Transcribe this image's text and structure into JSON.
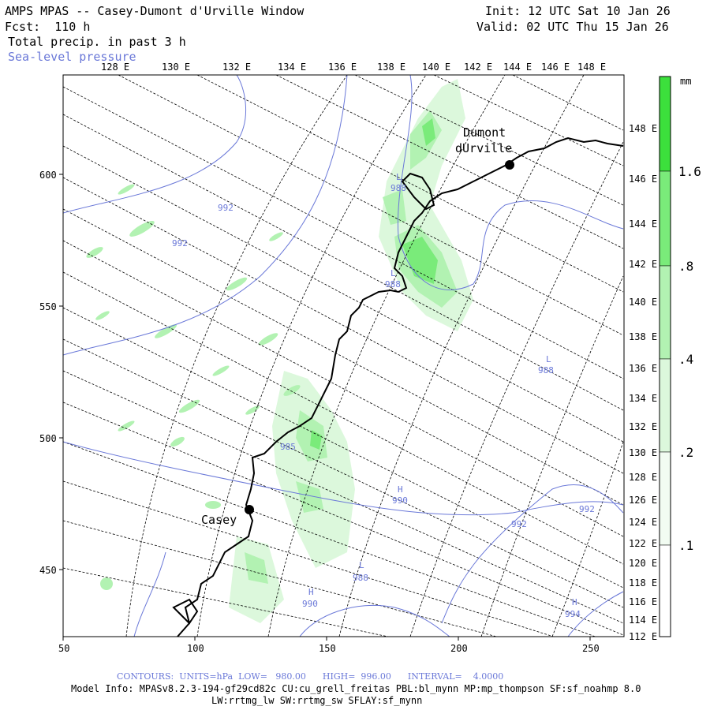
{
  "header": {
    "title": "AMPS MPAS -- Casey-Dumont d'Urville Window",
    "forecast": "Fcst:  110 h",
    "field": "Total precip. in past 3 h",
    "contour_field": "Sea-level pressure",
    "init": "Init: 12 UTC Sat 10 Jan 26",
    "valid": "Valid: 02 UTC Thu 15 Jan 26"
  },
  "top_lon_labels": [
    "128 E",
    "130 E",
    "132 E",
    "134 E",
    "136 E",
    "138 E",
    "140 E",
    "142 E",
    "144 E",
    "146 E",
    "148 E"
  ],
  "right_lon_labels": [
    "148 E",
    "146 E",
    "144 E",
    "142 E",
    "140 E",
    "138 E",
    "136 E",
    "134 E",
    "132 E",
    "130 E",
    "128 E",
    "126 E",
    "124 E",
    "122 E",
    "120 E",
    "118 E",
    "116 E",
    "114 E",
    "112 E"
  ],
  "x_axis_labels": [
    "50",
    "100",
    "150",
    "200",
    "250"
  ],
  "y_axis_labels": [
    "600",
    "550",
    "500",
    "450"
  ],
  "colorbar": {
    "unit": "mm",
    "labels": [
      "1.6",
      ".8",
      ".4",
      ".2",
      ".1"
    ],
    "colors": [
      "#3ce03c",
      "#7aeb7a",
      "#b2f2b2",
      "#dcf8dc",
      "#f2fcf2"
    ]
  },
  "stations": [
    {
      "name": "Casey"
    },
    {
      "name_line1": "Dumont",
      "name_line2": "dUrville"
    }
  ],
  "contour_labels": [
    {
      "text": "992"
    },
    {
      "text": "992"
    },
    {
      "text": "L"
    },
    {
      "text": "988"
    },
    {
      "text": "L"
    },
    {
      "text": "988"
    },
    {
      "text": "L"
    },
    {
      "text": "988"
    },
    {
      "text": "985"
    },
    {
      "text": "H"
    },
    {
      "text": "990"
    },
    {
      "text": "992"
    },
    {
      "text": "992"
    },
    {
      "text": "L"
    },
    {
      "text": "988"
    },
    {
      "text": "H"
    },
    {
      "text": "990"
    },
    {
      "text": "H"
    },
    {
      "text": "994"
    }
  ],
  "footer": {
    "contours": "CONTOURS:  UNITS=hPa  LOW=   980.00      HIGH=  996.00      INTERVAL=    4.0000",
    "model_info": "Model Info: MPASv8.2.3-194-gf29cd82c CU:cu_grell_freitas PBL:bl_mynn MP:mp_thompson SF:sf_noahmp 8.0",
    "model_info2": "LW:rrtmg_lw SW:rrtmg_sw SFLAY:sf_mynn"
  },
  "colors": {
    "contour": "#6a78d8",
    "coast": "#000000",
    "grid": "#000000"
  }
}
